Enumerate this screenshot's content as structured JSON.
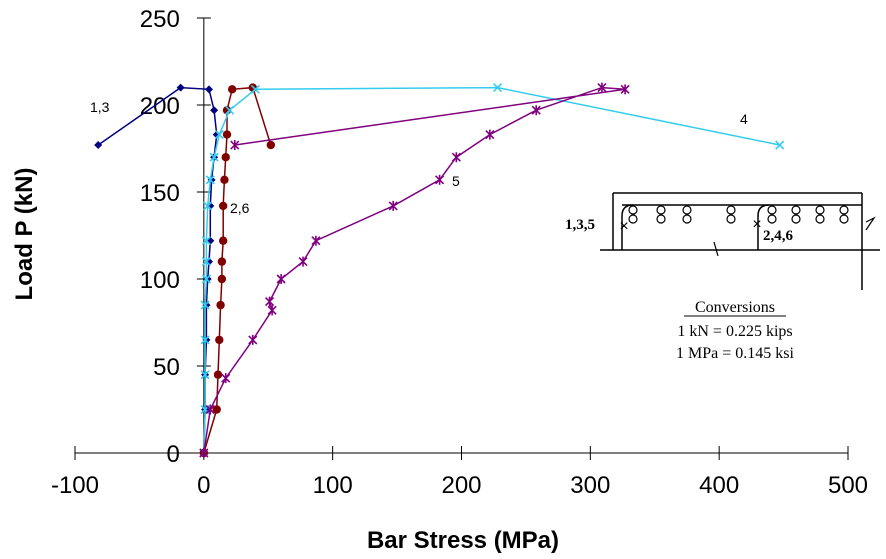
{
  "chart_data": {
    "type": "line",
    "xlabel": "Bar Stress (MPa)",
    "ylabel": "Load P (kN)",
    "xlim": [
      -100,
      500
    ],
    "ylim": [
      0,
      250
    ],
    "x_ticks": [
      -100,
      0,
      100,
      200,
      300,
      400,
      500
    ],
    "y_ticks": [
      0,
      50,
      100,
      150,
      200,
      250
    ],
    "x_tick_labels": [
      "-100",
      "0",
      "100",
      "200",
      "300",
      "400",
      "500"
    ],
    "y_tick_labels": [
      "0",
      "50",
      "100",
      "150",
      "200",
      "250"
    ],
    "grid": false,
    "series": [
      {
        "label": "1,3",
        "color": "#000080",
        "marker": "diamond",
        "points": [
          [
            0,
            0
          ],
          [
            1,
            25
          ],
          [
            1,
            45
          ],
          [
            2,
            65
          ],
          [
            2,
            85
          ],
          [
            3,
            100
          ],
          [
            4,
            110
          ],
          [
            5,
            122
          ],
          [
            5,
            142
          ],
          [
            6,
            157
          ],
          [
            8,
            170
          ],
          [
            10,
            183
          ],
          [
            8,
            197
          ],
          [
            4,
            209
          ],
          [
            -18,
            210
          ],
          [
            -82,
            177
          ]
        ]
      },
      {
        "label": "2,6",
        "color": "#800000",
        "marker": "circle",
        "points": [
          [
            0,
            0
          ],
          [
            10,
            25
          ],
          [
            11,
            45
          ],
          [
            12,
            65
          ],
          [
            13,
            85
          ],
          [
            14,
            100
          ],
          [
            14,
            110
          ],
          [
            15,
            122
          ],
          [
            15,
            142
          ],
          [
            16,
            157
          ],
          [
            17,
            170
          ],
          [
            18,
            183
          ],
          [
            18,
            197
          ],
          [
            22,
            209
          ],
          [
            38,
            210
          ],
          [
            52,
            177
          ]
        ]
      },
      {
        "label": "4",
        "color": "#33ccee",
        "marker": "x",
        "points": [
          [
            0,
            0
          ],
          [
            1,
            25
          ],
          [
            1,
            45
          ],
          [
            1,
            65
          ],
          [
            1,
            85
          ],
          [
            2,
            100
          ],
          [
            2,
            110
          ],
          [
            2,
            122
          ],
          [
            3,
            142
          ],
          [
            5,
            157
          ],
          [
            8,
            170
          ],
          [
            12,
            183
          ],
          [
            20,
            197
          ],
          [
            40,
            209
          ],
          [
            228,
            210
          ],
          [
            447,
            177
          ]
        ]
      },
      {
        "label": "5",
        "color": "#800080",
        "marker": "star",
        "points": [
          [
            0,
            0
          ],
          [
            5,
            25
          ],
          [
            17,
            43
          ],
          [
            38,
            65
          ],
          [
            53,
            82
          ],
          [
            51,
            87
          ],
          [
            60,
            100
          ],
          [
            77,
            110
          ],
          [
            87,
            122
          ],
          [
            147,
            142
          ],
          [
            183,
            157
          ],
          [
            196,
            170
          ],
          [
            222,
            183
          ],
          [
            258,
            197
          ],
          [
            309,
            210
          ],
          [
            327,
            209
          ],
          [
            24,
            177
          ]
        ]
      }
    ],
    "inset": {
      "left_label": "1,3,5",
      "right_label": "2,4,6"
    },
    "conversions": {
      "title": "Conversions",
      "lines": [
        "1 kN = 0.225 kips",
        "1 MPa = 0.145 ksi"
      ]
    }
  }
}
